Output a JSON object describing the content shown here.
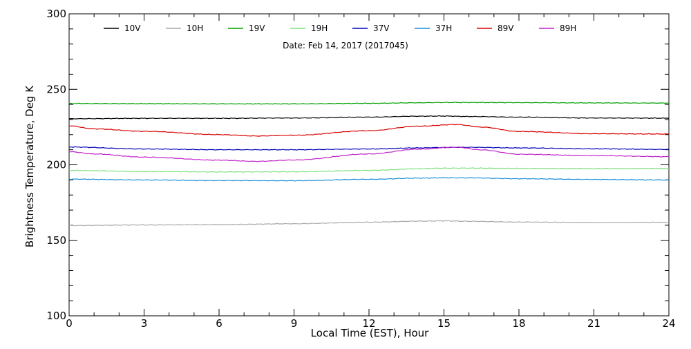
{
  "chart_data": {
    "type": "line",
    "subtitle": "Date: Feb 14, 2017 (2017045)",
    "xlabel": "Local Time (EST), Hour",
    "ylabel": "Brightness Temperature, Deg K",
    "xlim": [
      0,
      24
    ],
    "ylim": [
      100,
      300
    ],
    "x_ticks": [
      0,
      3,
      6,
      9,
      12,
      15,
      18,
      21,
      24
    ],
    "y_ticks": [
      100,
      150,
      200,
      250,
      300
    ],
    "grid": false,
    "legend_position": "top",
    "series": [
      {
        "name": "10V",
        "color": "#000000",
        "x": [
          0,
          3,
          6,
          9,
          12,
          14,
          15,
          16,
          18,
          21,
          24
        ],
        "y": [
          230.5,
          230.8,
          230.8,
          231.0,
          231.6,
          232.2,
          232.3,
          232.0,
          231.6,
          231.0,
          230.9
        ]
      },
      {
        "name": "10H",
        "color": "#a8a8a8",
        "x": [
          0,
          3,
          6,
          9,
          12,
          14,
          15,
          16,
          18,
          21,
          24
        ],
        "y": [
          159.8,
          160.2,
          160.4,
          161.0,
          162.0,
          162.7,
          162.9,
          162.6,
          162.1,
          161.8,
          161.9
        ]
      },
      {
        "name": "19V",
        "color": "#00a000",
        "x": [
          0,
          3,
          6,
          9,
          12,
          14,
          15,
          16,
          18,
          21,
          24
        ],
        "y": [
          240.6,
          240.5,
          240.4,
          240.4,
          240.7,
          241.1,
          241.3,
          241.3,
          241.2,
          241.0,
          240.9
        ]
      },
      {
        "name": "19H",
        "color": "#80e080",
        "x": [
          0,
          3,
          6,
          9,
          12,
          14,
          15,
          16,
          18,
          21,
          24
        ],
        "y": [
          196.3,
          195.6,
          195.3,
          195.4,
          196.3,
          197.4,
          197.8,
          197.8,
          197.6,
          197.5,
          197.6
        ]
      },
      {
        "name": "37V",
        "color": "#0000b8",
        "x": [
          0,
          3,
          6,
          9,
          12,
          14,
          15,
          16,
          18,
          21,
          24
        ],
        "y": [
          211.8,
          210.5,
          210.0,
          210.0,
          210.5,
          211.2,
          211.5,
          211.6,
          211.2,
          210.6,
          210.2
        ]
      },
      {
        "name": "37H",
        "color": "#1a8fd8",
        "x": [
          0,
          3,
          6,
          9,
          12,
          14,
          15,
          16,
          18,
          21,
          24
        ],
        "y": [
          190.5,
          190.0,
          189.6,
          189.5,
          190.4,
          191.2,
          191.4,
          191.4,
          190.8,
          190.3,
          190.0
        ]
      },
      {
        "name": "89V",
        "color": "#d80000",
        "x": [
          0,
          1,
          3,
          6,
          7.5,
          9,
          12,
          14,
          15.5,
          16.5,
          18,
          21,
          24
        ],
        "y": [
          225.8,
          223.8,
          222.2,
          220.0,
          219.1,
          219.6,
          222.6,
          225.6,
          226.7,
          225.0,
          222.1,
          220.6,
          220.4
        ]
      },
      {
        "name": "89H",
        "color": "#c020c8",
        "x": [
          0,
          1,
          3,
          6,
          7.5,
          9,
          12,
          14,
          15.5,
          16.5,
          18,
          21,
          24
        ],
        "y": [
          208.7,
          207.2,
          205.1,
          203.1,
          202.3,
          203.2,
          207.2,
          210.4,
          211.7,
          209.9,
          207.0,
          206.1,
          205.4
        ]
      }
    ]
  }
}
